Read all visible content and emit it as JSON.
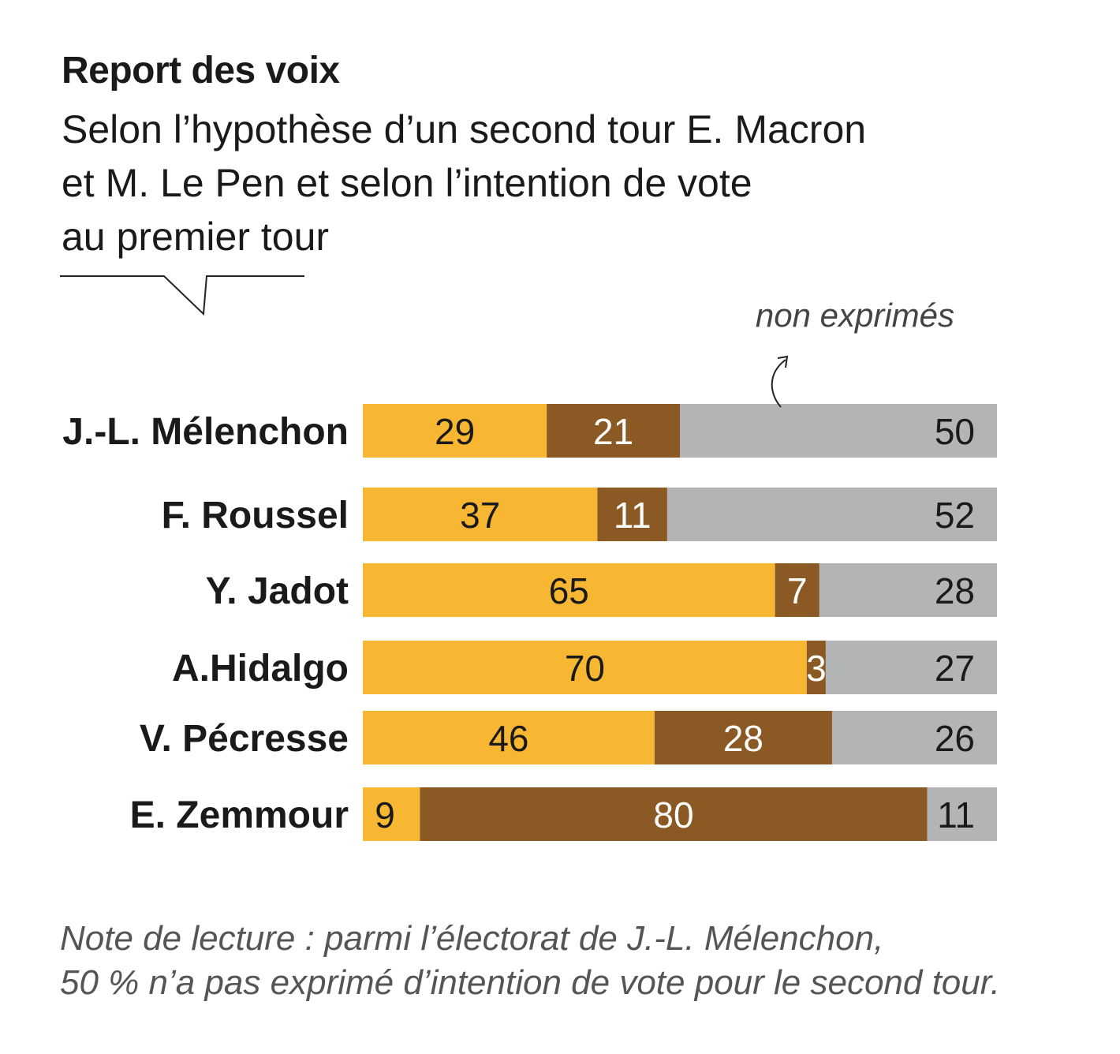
{
  "title": "Report des voix",
  "subtitle_lines": [
    "Selon l’hypothèse d’un second tour E. Macron",
    "et M. Le Pen et selon l’intention de vote",
    "au premier tour"
  ],
  "annotation": "non exprimés",
  "colors": {
    "macron": "#F7B733",
    "lepen": "#8B5A24",
    "non_exprimes": "#B3B4B6",
    "text_dark": "#1a1a1a",
    "text_light": "#ffffff"
  },
  "chart_data": {
    "type": "bar",
    "orientation": "horizontal",
    "stacked": true,
    "title": "Report des voix",
    "xlim": [
      0,
      100
    ],
    "categories": [
      "J.-L. Mélenchon",
      "F. Roussel",
      "Y. Jadot",
      "A.Hidalgo",
      "V. Pécresse",
      "E. Zemmour"
    ],
    "series": [
      {
        "name": "E. Macron",
        "values": [
          29,
          37,
          65,
          70,
          46,
          9
        ]
      },
      {
        "name": "M. Le Pen",
        "values": [
          21,
          11,
          7,
          3,
          28,
          80
        ]
      },
      {
        "name": "non exprimés",
        "values": [
          50,
          52,
          28,
          27,
          26,
          11
        ]
      }
    ],
    "annotations": [
      "non exprimés"
    ]
  },
  "footnote_lines": [
    "Note de lecture :  parmi l’électorat de J.-L. Mélenchon,",
    "50 % n’a pas exprimé d’intention de vote pour le second tour."
  ]
}
